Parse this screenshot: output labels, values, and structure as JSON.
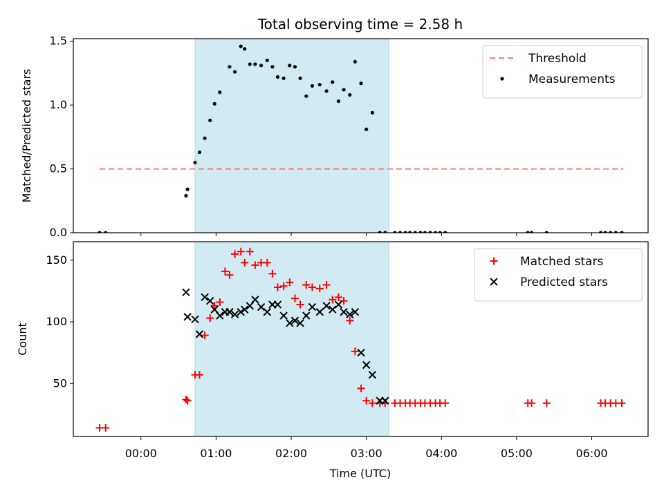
{
  "figure": {
    "title": "Total observing time = 2.58 h",
    "xlabel": "Time (UTC)",
    "x_tick_labels": [
      "00:00",
      "01:00",
      "02:00",
      "03:00",
      "04:00",
      "05:00",
      "06:00"
    ],
    "colors": {
      "threshold": "#ff7b7b",
      "measurements": "#000000",
      "matched": "#ff0000",
      "predicted": "#000000",
      "span": "#add8e6"
    }
  },
  "chart_data": [
    {
      "type": "scatter",
      "title": "Total observing time = 2.58 h",
      "ylabel": "Matched/Predicted stars",
      "xlabel": "",
      "x_unit": "hours UTC",
      "xlim": [
        -0.9,
        6.75
      ],
      "ylim": [
        0,
        1.52
      ],
      "y_ticks": [
        0.0,
        0.5,
        1.0,
        1.5
      ],
      "y_tick_labels": [
        "0.0",
        "0.5",
        "1.0",
        "1.5"
      ],
      "highlight_span": [
        0.72,
        3.3
      ],
      "legend_position": "upper right",
      "threshold": {
        "name": "Threshold",
        "y": 0.5,
        "x_range": [
          -0.55,
          6.42
        ]
      },
      "series": [
        {
          "name": "Measurements",
          "x": [
            -0.55,
            -0.47,
            0.6,
            0.62,
            0.72,
            0.78,
            0.85,
            0.92,
            0.98,
            1.05,
            1.18,
            1.25,
            1.33,
            1.38,
            1.45,
            1.52,
            1.6,
            1.68,
            1.75,
            1.82,
            1.9,
            1.98,
            2.05,
            2.12,
            2.2,
            2.28,
            2.38,
            2.47,
            2.55,
            2.63,
            2.7,
            2.78,
            2.85,
            2.93,
            3.0,
            3.08,
            3.18,
            3.25,
            3.38,
            3.45,
            3.52,
            3.58,
            3.65,
            3.72,
            3.78,
            3.85,
            3.92,
            3.98,
            4.05,
            5.15,
            5.2,
            5.4,
            6.12,
            6.18,
            6.25,
            6.32,
            6.4
          ],
          "y": [
            0.0,
            0.0,
            0.29,
            0.34,
            0.55,
            0.63,
            0.74,
            0.88,
            1.01,
            1.1,
            1.3,
            1.26,
            1.46,
            1.44,
            1.32,
            1.32,
            1.31,
            1.35,
            1.3,
            1.22,
            1.21,
            1.31,
            1.3,
            1.21,
            1.07,
            1.15,
            1.16,
            1.11,
            1.18,
            1.03,
            1.12,
            1.08,
            1.34,
            1.17,
            0.81,
            0.94,
            0.0,
            0.0,
            0.0,
            0.0,
            0.0,
            0.0,
            0.0,
            0.0,
            0.0,
            0.0,
            0.0,
            0.0,
            0.0,
            0.0,
            0.0,
            0.0,
            0.0,
            0.0,
            0.0,
            0.0,
            0.0
          ]
        }
      ]
    },
    {
      "type": "scatter",
      "title": "",
      "ylabel": "Count",
      "xlabel": "Time (UTC)",
      "x_unit": "hours UTC",
      "xlim": [
        -0.9,
        6.75
      ],
      "ylim": [
        7,
        165
      ],
      "y_ticks": [
        50,
        100,
        150
      ],
      "y_tick_labels": [
        "50",
        "100",
        "150"
      ],
      "x_tick_values": [
        0,
        1,
        2,
        3,
        4,
        5,
        6
      ],
      "x_tick_labels": [
        "00:00",
        "01:00",
        "02:00",
        "03:00",
        "04:00",
        "05:00",
        "06:00"
      ],
      "highlight_span": [
        0.72,
        3.3
      ],
      "legend_position": "upper right",
      "series": [
        {
          "name": "Matched stars",
          "marker": "plus",
          "x": [
            -0.55,
            -0.47,
            0.6,
            0.62,
            0.72,
            0.78,
            0.85,
            0.92,
            0.98,
            1.05,
            1.12,
            1.18,
            1.25,
            1.33,
            1.38,
            1.45,
            1.52,
            1.6,
            1.68,
            1.75,
            1.82,
            1.9,
            1.98,
            2.05,
            2.12,
            2.2,
            2.28,
            2.38,
            2.47,
            2.55,
            2.63,
            2.7,
            2.78,
            2.85,
            2.93,
            3.0,
            3.08,
            3.18,
            3.25,
            3.38,
            3.45,
            3.52,
            3.58,
            3.65,
            3.72,
            3.78,
            3.85,
            3.92,
            3.98,
            4.05,
            5.15,
            5.2,
            5.4,
            6.12,
            6.18,
            6.25,
            6.32,
            6.4
          ],
          "y": [
            14,
            14,
            37,
            36,
            57,
            57,
            89,
            103,
            113,
            116,
            141,
            138,
            155,
            157,
            148,
            157,
            146,
            148,
            148,
            139,
            128,
            129,
            132,
            119,
            114,
            130,
            128,
            127,
            130,
            118,
            120,
            117,
            101,
            76,
            46,
            36,
            34,
            34,
            34,
            34,
            34,
            34,
            34,
            34,
            34,
            34,
            34,
            34,
            34,
            34,
            34,
            34,
            34,
            34,
            34,
            34,
            34,
            34
          ]
        },
        {
          "name": "Predicted stars",
          "marker": "x",
          "x": [
            0.6,
            0.62,
            0.72,
            0.78,
            0.85,
            0.92,
            0.98,
            1.05,
            1.12,
            1.18,
            1.25,
            1.33,
            1.38,
            1.45,
            1.52,
            1.6,
            1.68,
            1.75,
            1.82,
            1.9,
            1.98,
            2.05,
            2.12,
            2.2,
            2.28,
            2.38,
            2.47,
            2.55,
            2.63,
            2.7,
            2.78,
            2.85,
            2.93,
            3.0,
            3.08,
            3.18,
            3.25
          ],
          "y": [
            124,
            104,
            102,
            90,
            120,
            117,
            110,
            105,
            108,
            108,
            106,
            108,
            110,
            113,
            118,
            112,
            108,
            114,
            114,
            105,
            99,
            101,
            99,
            105,
            112,
            108,
            113,
            110,
            114,
            108,
            106,
            108,
            75,
            65,
            57,
            36,
            36
          ]
        }
      ]
    }
  ]
}
